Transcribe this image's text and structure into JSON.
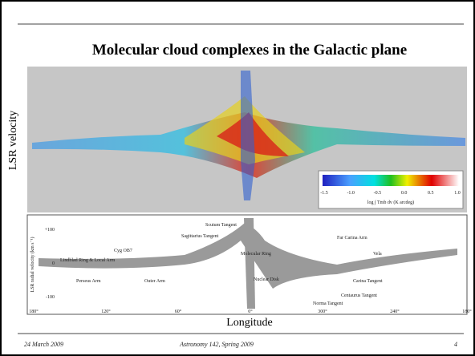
{
  "slide": {
    "title": "Molecular cloud complexes in the Galactic plane",
    "y_label": "LSR velocity",
    "x_label": "Longitude",
    "colorbar": {
      "ticks": [
        "-1.5",
        "-1.0",
        "-0.5",
        "0.0",
        "0.5",
        "1.0"
      ],
      "label": "log ∫ Tmb dv  (K arcdeg)"
    },
    "diagram": {
      "y_label": "LSR radial velocity (km s⁻¹)",
      "y_ticks": [
        "+100",
        "0",
        "-100"
      ],
      "x_ticks": [
        "180°",
        "120°",
        "60°",
        "0°",
        "300°",
        "240°",
        "180°"
      ],
      "labels": [
        "Lindblad Ring & Local Arm",
        "Perseus Arm",
        "Outer Arm",
        "Molecular Ring",
        "Scutum Tangent",
        "Sagittarius Tangent",
        "Far Carina Arm",
        "Carina Tangent",
        "Centaurus Tangent",
        "Norma Tangent",
        "Nuclear Disk",
        "Vela",
        "Cyg OB7"
      ]
    },
    "footer": {
      "date": "24 March 2009",
      "course": "Astronomy 142, Spring 2009",
      "page": "4"
    }
  }
}
